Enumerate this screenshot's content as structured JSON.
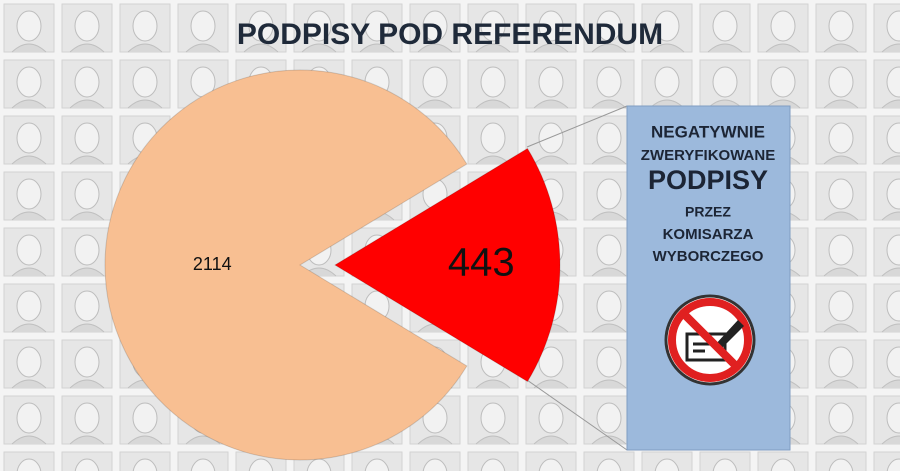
{
  "chart_data": {
    "type": "pie",
    "title": "PODPISY POD REFERENDUM",
    "values": [
      2114,
      443
    ],
    "colors": [
      "#f8bf92",
      "#ff0000"
    ],
    "explode": [
      false,
      true
    ],
    "annotation": [
      "NEGATYWNIE",
      "ZWERYFIKOWANE",
      "PODPISY",
      "PRZEZ",
      "KOMISARZA",
      "WYBORCZEGO"
    ]
  }
}
